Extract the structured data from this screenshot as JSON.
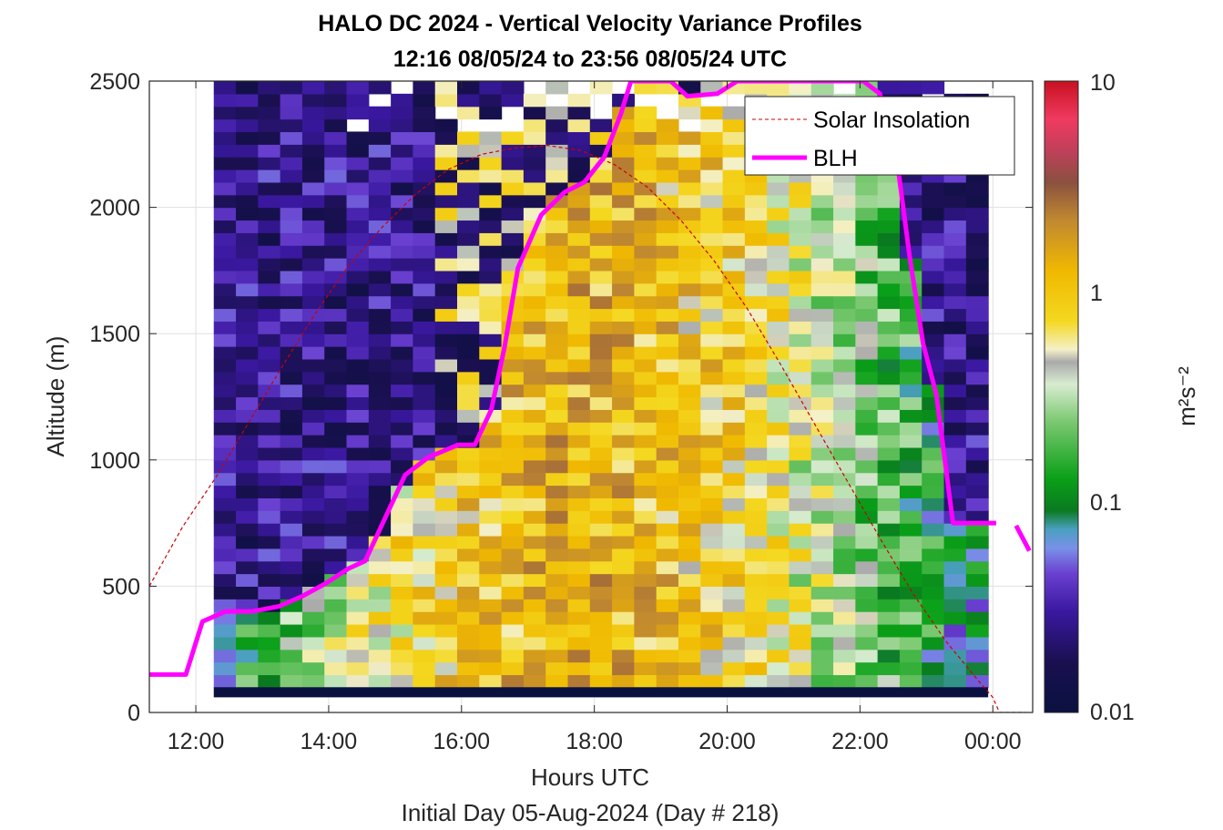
{
  "chart_data": {
    "type": "heatmap",
    "title_line1": "HALO DC 2024 - Vertical Velocity Variance Profiles",
    "title_line2": "12:16 08/05/24 to 23:56 08/05/24  UTC",
    "xlabel": "Hours UTC",
    "xlabel2": "Initial Day 05-Aug-2024 (Day # 218)",
    "ylabel": "Altitude (m)",
    "colorbar_label": "m²s⁻²",
    "colorbar_scale": "log",
    "colorbar_range": [
      0.01,
      10
    ],
    "colorbar_ticks": [
      "0.01",
      "0.1",
      "1",
      "10"
    ],
    "xlim": [
      11.3,
      24.6
    ],
    "ylim": [
      0,
      2500
    ],
    "x_ticks": [
      {
        "value": 12,
        "label": "12:00"
      },
      {
        "value": 14,
        "label": "14:00"
      },
      {
        "value": 16,
        "label": "16:00"
      },
      {
        "value": 18,
        "label": "18:00"
      },
      {
        "value": 20,
        "label": "20:00"
      },
      {
        "value": 22,
        "label": "22:00"
      },
      {
        "value": 24,
        "label": "00:00"
      }
    ],
    "y_ticks": [
      0,
      500,
      1000,
      1500,
      2000,
      2500
    ],
    "grid": true,
    "legend_position": "top-right",
    "heatmap": {
      "x_start": 12.27,
      "x_end": 23.93,
      "y_bottom_data": 100,
      "bin_height_m": 50,
      "description_note": "vertical velocity variance in m^2 s^-2, log color scale"
    },
    "series": [
      {
        "name": "Solar Insolation",
        "style": "dashed",
        "color": "#cc0000",
        "x": [
          11.3,
          11.8,
          12.3,
          12.8,
          13.3,
          13.8,
          14.3,
          14.8,
          15.3,
          15.8,
          16.3,
          16.8,
          17.3,
          17.8,
          18.3,
          18.8,
          19.3,
          19.8,
          20.3,
          20.8,
          21.3,
          21.8,
          22.3,
          22.8,
          23.3,
          23.8,
          24.0,
          24.1,
          24.5
        ],
        "y": [
          500,
          735,
          930,
          1150,
          1370,
          1580,
          1770,
          1920,
          2050,
          2150,
          2210,
          2235,
          2245,
          2225,
          2170,
          2080,
          1950,
          1790,
          1600,
          1380,
          1150,
          920,
          690,
          470,
          280,
          120,
          60,
          0,
          0
        ]
      },
      {
        "name": "BLH",
        "style": "solid",
        "color": "#ff00ff",
        "x": [
          11.3,
          11.85,
          12.1,
          12.45,
          12.85,
          13.25,
          13.6,
          13.95,
          14.3,
          14.55,
          14.85,
          15.15,
          15.5,
          15.95,
          16.2,
          16.45,
          16.65,
          16.85,
          17.2,
          17.55,
          17.85,
          18.15,
          18.4,
          18.55,
          19.15,
          19.4,
          19.85,
          20.15,
          20.55,
          20.9,
          21.3,
          21.7,
          22.05,
          22.3,
          22.55,
          22.75,
          22.95,
          23.15,
          23.4,
          23.65,
          23.9,
          24.05
        ],
        "y": [
          150,
          150,
          360,
          400,
          400,
          420,
          460,
          510,
          570,
          600,
          770,
          940,
          1010,
          1060,
          1060,
          1200,
          1450,
          1760,
          1970,
          2060,
          2100,
          2200,
          2370,
          2500,
          2500,
          2440,
          2450,
          2500,
          2500,
          2500,
          2500,
          2500,
          2500,
          2450,
          2200,
          1800,
          1460,
          1260,
          750,
          750,
          750,
          750
        ]
      },
      {
        "name": "BLH (tail)",
        "style": "solid",
        "color": "#ff00ff",
        "x": [
          24.35,
          24.55
        ],
        "y": [
          740,
          640
        ]
      }
    ]
  }
}
